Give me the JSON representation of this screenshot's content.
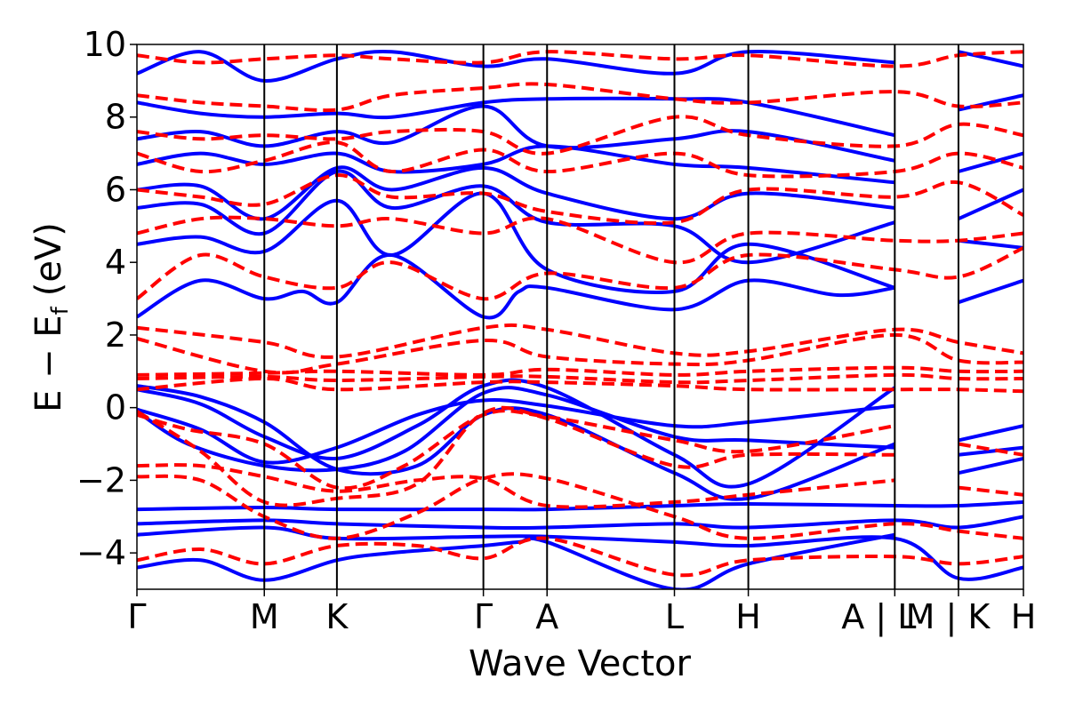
{
  "chart_data": {
    "type": "line",
    "title": "",
    "xlabel": "Wave Vector",
    "ylabel": "E − E_f (eV)",
    "ylabel_parts": {
      "main": "E  −  E",
      "sub": "f",
      "unit": "(eV)"
    },
    "ylim": [
      -5,
      10
    ],
    "y_ticks": [
      -4,
      -2,
      0,
      2,
      4,
      6,
      8,
      10
    ],
    "y_tick_labels": [
      "−4",
      "−2",
      "0",
      "2",
      "4",
      "6",
      "8",
      "10"
    ],
    "k_path": {
      "positions": [
        0,
        1,
        1.57,
        2.72,
        3.22,
        4.22,
        4.8,
        5.95,
        6.45,
        6.96
      ],
      "labels": [
        "Γ",
        "M",
        "K",
        "Γ",
        "A",
        "L",
        "H",
        "A | L",
        "M | K",
        "H"
      ],
      "xlim": [
        0,
        6.96
      ]
    },
    "legend": "none",
    "grid": false,
    "series": [
      {
        "style": "spin-up",
        "color": "#0000ff",
        "dash": "solid",
        "bands": [
          {
            "x": [
              0,
              0.5,
              1,
              1.57,
              2.0,
              2.72,
              3.0,
              3.22,
              4.22,
              4.8,
              5.95
            ],
            "y": [
              -4.4,
              -4.2,
              -4.75,
              -4.2,
              -4.0,
              -3.8,
              -3.7,
              -3.7,
              -5.0,
              -4.3,
              -3.5
            ]
          },
          {
            "x": [
              0,
              1,
              1.57,
              2.72,
              3.22,
              4.22,
              4.8,
              5.95,
              6.45,
              6.96
            ],
            "y": [
              -3.5,
              -3.3,
              -3.6,
              -3.55,
              -3.55,
              -3.7,
              -3.8,
              -3.6,
              -4.7,
              -4.4
            ]
          },
          {
            "x": [
              0,
              1,
              1.57,
              2.72,
              3.22,
              4.22,
              4.8,
              5.95,
              6.45,
              6.96
            ],
            "y": [
              -3.2,
              -3.1,
              -3.2,
              -3.3,
              -3.3,
              -3.2,
              -3.3,
              -3.1,
              -3.3,
              -3.0
            ]
          },
          {
            "x": [
              0,
              1,
              1.57,
              2.72,
              3.22,
              4.22,
              4.8,
              5.95,
              6.45,
              6.96
            ],
            "y": [
              -2.8,
              -2.75,
              -2.8,
              -2.8,
              -2.8,
              -2.7,
              -2.65,
              -2.7,
              -2.7,
              -2.6
            ]
          },
          {
            "x": [
              0,
              0.4,
              1,
              1.57,
              2.1,
              2.72,
              3.22,
              4.22,
              4.8,
              5.95
            ],
            "y": [
              -0.1,
              -1.0,
              -1.6,
              -1.7,
              -1.2,
              0.4,
              0.35,
              -0.8,
              -0.9,
              -1.1
            ]
          },
          {
            "x": [
              0,
              0.5,
              1,
              1.57,
              2.2,
              2.72,
              3.22,
              4.22,
              4.8,
              5.95
            ],
            "y": [
              -0.05,
              -0.6,
              -1.5,
              -1.1,
              -0.2,
              0.2,
              0.05,
              -0.5,
              -0.4,
              0.05
            ]
          },
          {
            "x": [
              0,
              0.5,
              1,
              1.57,
              2.2,
              2.72,
              3.22,
              4.22,
              4.8,
              5.95
            ],
            "y": [
              0.5,
              0.1,
              -0.8,
              -1.4,
              -0.5,
              0.6,
              0.55,
              -1.3,
              -2.1,
              0.55
            ]
          },
          {
            "x": [
              0,
              0.5,
              1,
              1.57,
              2.2,
              2.72,
              3.22,
              4.22,
              4.8,
              5.95
            ],
            "y": [
              0.6,
              0.3,
              -0.4,
              -1.7,
              -1.6,
              -0.2,
              -0.2,
              -1.8,
              -2.5,
              -1.0
            ]
          },
          {
            "x": [
              6.45,
              6.96
            ],
            "y": [
              -0.9,
              -0.5
            ]
          },
          {
            "x": [
              6.45,
              6.96
            ],
            "y": [
              -1.3,
              -1.1
            ]
          },
          {
            "x": [
              6.45,
              6.96
            ],
            "y": [
              -1.8,
              -1.4
            ]
          },
          {
            "x": [
              0,
              0.5,
              1,
              1.3,
              1.57,
              2.0,
              2.72,
              3.0,
              3.22,
              4.22,
              4.8,
              5.5,
              5.95
            ],
            "y": [
              2.5,
              3.5,
              3.0,
              3.2,
              2.9,
              4.2,
              2.5,
              3.2,
              3.3,
              2.7,
              3.5,
              3.1,
              3.3
            ]
          },
          {
            "x": [
              0,
              0.5,
              1,
              1.57,
              2.0,
              2.72,
              3.22,
              4.22,
              4.8,
              5.95
            ],
            "y": [
              4.5,
              4.7,
              4.3,
              5.7,
              4.2,
              5.9,
              3.8,
              3.2,
              4.5,
              3.3
            ]
          },
          {
            "x": [
              0,
              0.5,
              1,
              1.57,
              2.0,
              2.72,
              3.22,
              4.22,
              4.8,
              5.95
            ],
            "y": [
              5.5,
              5.6,
              4.8,
              6.5,
              5.5,
              6.1,
              5.1,
              5.0,
              4.0,
              5.1
            ]
          },
          {
            "x": [
              0,
              0.5,
              1,
              1.57,
              2.0,
              2.72,
              3.22,
              4.22,
              4.8,
              5.95
            ],
            "y": [
              6.0,
              6.1,
              5.2,
              6.6,
              6.0,
              6.6,
              5.9,
              5.2,
              5.9,
              5.5
            ]
          },
          {
            "x": [
              0,
              0.5,
              1,
              1.57,
              2.0,
              2.72,
              3.22,
              4.22,
              4.8,
              5.95
            ],
            "y": [
              6.7,
              7.0,
              6.7,
              7.0,
              6.5,
              6.7,
              7.2,
              6.7,
              6.6,
              6.2
            ]
          },
          {
            "x": [
              0,
              0.5,
              1,
              1.57,
              2.0,
              2.72,
              3.22,
              4.22,
              4.8,
              5.95
            ],
            "y": [
              7.4,
              7.6,
              7.2,
              7.6,
              7.3,
              8.3,
              7.2,
              7.4,
              7.6,
              6.8
            ]
          },
          {
            "x": [
              0,
              0.5,
              1,
              1.57,
              2.0,
              2.72,
              3.22,
              4.22,
              4.8,
              5.95
            ],
            "y": [
              8.4,
              8.1,
              8.0,
              8.1,
              8.0,
              8.4,
              8.5,
              8.5,
              8.4,
              7.5
            ]
          },
          {
            "x": [
              0,
              0.5,
              1,
              1.57,
              2.0,
              2.72,
              3.22,
              4.22,
              4.8,
              5.95
            ],
            "y": [
              9.2,
              9.8,
              9.0,
              9.6,
              9.8,
              9.4,
              9.6,
              9.2,
              9.8,
              9.5
            ]
          },
          {
            "x": [
              6.45,
              6.96
            ],
            "y": [
              2.9,
              3.5
            ]
          },
          {
            "x": [
              6.45,
              6.96
            ],
            "y": [
              4.6,
              4.4
            ]
          },
          {
            "x": [
              6.45,
              6.96
            ],
            "y": [
              5.2,
              6.0
            ]
          },
          {
            "x": [
              6.45,
              6.96
            ],
            "y": [
              6.5,
              7.0
            ]
          },
          {
            "x": [
              6.45,
              6.96
            ],
            "y": [
              8.2,
              8.6
            ]
          },
          {
            "x": [
              6.45,
              6.96
            ],
            "y": [
              9.8,
              9.4
            ]
          }
        ]
      },
      {
        "style": "spin-down",
        "color": "#ff0000",
        "dash": "dashed",
        "bands": [
          {
            "x": [
              0,
              0.5,
              1,
              1.57,
              2.2,
              2.72,
              3.22,
              4.22,
              4.8,
              5.95,
              6.45,
              6.96
            ],
            "y": [
              -4.2,
              -3.9,
              -4.3,
              -3.8,
              -3.8,
              -4.15,
              -3.6,
              -4.6,
              -4.2,
              -4.1,
              -4.3,
              -4.1
            ]
          },
          {
            "x": [
              0,
              0.5,
              1,
              1.57,
              2.2,
              2.72,
              3.22,
              4.22,
              4.8,
              5.95,
              6.45,
              6.96
            ],
            "y": [
              -1.9,
              -2.0,
              -3.0,
              -3.6,
              -2.9,
              -1.95,
              -1.95,
              -3.0,
              -3.6,
              -3.2,
              -3.4,
              -3.6
            ]
          },
          {
            "x": [
              0,
              0.5,
              1,
              1.57,
              2.2,
              2.72,
              3.22,
              4.22,
              4.8,
              5.95
            ],
            "y": [
              -1.6,
              -1.6,
              -1.9,
              -2.3,
              -2.0,
              -1.95,
              -2.7,
              -2.6,
              -2.4,
              -2.0
            ]
          },
          {
            "x": [
              0,
              0.4,
              1,
              1.57,
              2.1,
              2.72,
              3.22,
              4.22,
              4.8,
              5.95
            ],
            "y": [
              -0.2,
              -0.6,
              -1.0,
              -2.2,
              -1.6,
              -0.2,
              -0.25,
              -0.9,
              -1.2,
              -0.5
            ]
          },
          {
            "x": [
              0,
              0.5,
              1,
              1.57,
              2.2,
              2.72,
              3.22,
              4.22,
              4.8,
              5.95
            ],
            "y": [
              -0.1,
              -1.2,
              -2.6,
              -2.5,
              -2.1,
              -0.15,
              -0.3,
              -1.6,
              -1.3,
              -1.3
            ]
          },
          {
            "x": [
              6.45,
              6.96
            ],
            "y": [
              -1.0,
              -1.3
            ]
          },
          {
            "x": [
              6.45,
              6.96
            ],
            "y": [
              -2.2,
              -2.4
            ]
          },
          {
            "x": [
              0,
              1,
              1.57,
              2.72,
              3.22,
              4.22,
              4.8,
              5.95,
              6.45,
              6.96
            ],
            "y": [
              2.2,
              1.8,
              1.4,
              2.2,
              2.15,
              1.5,
              1.55,
              2.15,
              1.8,
              1.5
            ]
          },
          {
            "x": [
              0,
              1,
              1.57,
              2.72,
              3.22,
              4.22,
              4.8,
              5.95,
              6.45,
              6.96
            ],
            "y": [
              1.9,
              1.0,
              1.2,
              1.85,
              1.4,
              1.2,
              1.3,
              2.0,
              1.3,
              1.25
            ]
          },
          {
            "x": [
              0,
              1,
              1.57,
              2.72,
              3.22,
              4.22,
              4.8,
              5.95,
              6.45,
              6.96
            ],
            "y": [
              0.9,
              0.95,
              1.0,
              0.9,
              1.05,
              0.9,
              1.0,
              1.1,
              1.0,
              1.0
            ]
          },
          {
            "x": [
              0,
              1,
              1.57,
              2.72,
              3.22,
              4.22,
              4.8,
              5.95,
              6.45,
              6.96
            ],
            "y": [
              0.8,
              0.85,
              0.75,
              0.85,
              0.85,
              0.7,
              0.75,
              0.9,
              0.8,
              0.8
            ]
          },
          {
            "x": [
              0,
              1,
              1.57,
              2.72,
              3.22,
              4.22,
              4.8,
              5.95,
              6.45,
              6.96
            ],
            "y": [
              0.5,
              0.8,
              0.5,
              0.7,
              0.7,
              0.6,
              0.5,
              0.5,
              0.5,
              0.45
            ]
          },
          {
            "x": [
              0,
              0.5,
              1,
              1.57,
              2.0,
              2.72,
              3.22,
              4.22,
              4.8,
              5.95,
              6.45,
              6.96
            ],
            "y": [
              3.0,
              4.2,
              3.6,
              3.3,
              4.0,
              3.0,
              3.7,
              3.3,
              4.2,
              3.8,
              3.6,
              4.4
            ]
          },
          {
            "x": [
              0,
              0.5,
              1,
              1.57,
              2.0,
              2.72,
              3.22,
              4.22,
              4.8,
              5.95,
              6.45,
              6.96
            ],
            "y": [
              4.8,
              5.2,
              5.2,
              5.0,
              5.2,
              4.8,
              5.2,
              4.0,
              4.8,
              4.6,
              4.6,
              4.8
            ]
          },
          {
            "x": [
              0,
              0.5,
              1,
              1.57,
              2.0,
              2.72,
              3.22,
              4.22,
              4.8,
              5.95,
              6.45,
              6.96
            ],
            "y": [
              6.0,
              5.8,
              5.6,
              6.4,
              5.8,
              5.9,
              5.4,
              5.1,
              6.0,
              5.8,
              6.2,
              5.3
            ]
          },
          {
            "x": [
              0,
              0.5,
              1,
              1.57,
              2.0,
              2.72,
              3.22,
              4.22,
              4.8,
              5.95,
              6.45,
              6.96
            ],
            "y": [
              7.0,
              6.5,
              6.8,
              7.3,
              6.5,
              7.1,
              6.5,
              7.0,
              6.4,
              6.5,
              7.0,
              6.6
            ]
          },
          {
            "x": [
              0,
              0.5,
              1,
              1.57,
              2.0,
              2.72,
              3.22,
              4.22,
              4.8,
              5.95,
              6.45,
              6.96
            ],
            "y": [
              7.6,
              7.4,
              7.5,
              7.4,
              7.6,
              7.6,
              7.0,
              8.0,
              7.5,
              7.2,
              7.8,
              7.5
            ]
          },
          {
            "x": [
              0,
              0.5,
              1,
              1.57,
              2.0,
              2.72,
              3.22,
              4.22,
              4.8,
              5.95,
              6.45,
              6.96
            ],
            "y": [
              8.6,
              8.4,
              8.3,
              8.2,
              8.6,
              8.8,
              8.9,
              8.5,
              8.4,
              8.7,
              8.3,
              8.4
            ]
          },
          {
            "x": [
              0,
              0.5,
              1,
              1.57,
              2.0,
              2.72,
              3.22,
              4.22,
              4.8,
              5.95,
              6.45,
              6.96
            ],
            "y": [
              9.7,
              9.5,
              9.6,
              9.7,
              9.6,
              9.5,
              9.8,
              9.6,
              9.7,
              9.4,
              9.7,
              9.8
            ]
          }
        ]
      }
    ]
  }
}
